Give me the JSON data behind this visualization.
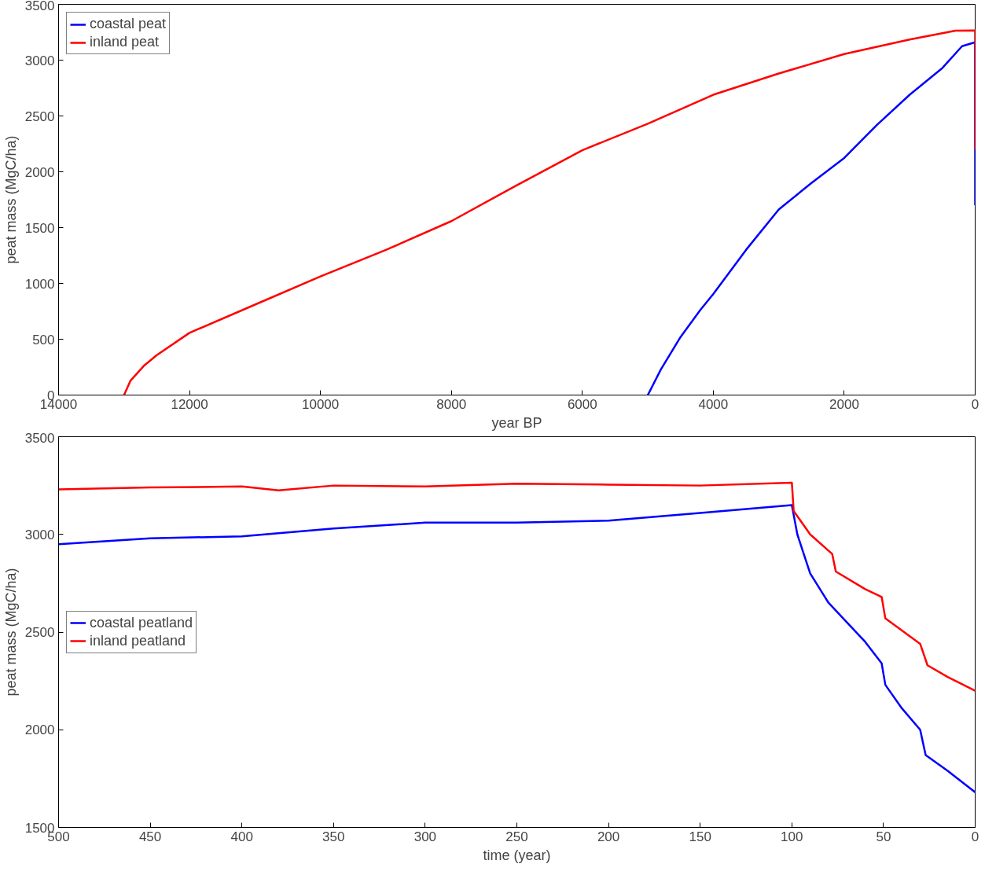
{
  "chart_data": [
    {
      "type": "line",
      "xlabel": "year BP",
      "ylabel": "peat mass (MgC/ha)",
      "xlim": [
        14000,
        0
      ],
      "ylim": [
        0,
        3500
      ],
      "xticks": [
        14000,
        12000,
        10000,
        8000,
        6000,
        4000,
        2000,
        0
      ],
      "yticks": [
        0,
        500,
        1000,
        1500,
        2000,
        2500,
        3000,
        3500
      ],
      "grid": false,
      "legend": "top left",
      "series": [
        {
          "name": "coastal peat",
          "color": "#0000ff",
          "x": [
            5000,
            4800,
            4500,
            4200,
            4000,
            3500,
            3000,
            2500,
            2000,
            1500,
            1000,
            500,
            200,
            0,
            0
          ],
          "values": [
            0,
            230,
            520,
            760,
            905,
            1300,
            1662,
            1900,
            2124,
            2420,
            2690,
            2930,
            3125,
            3160,
            1700
          ]
        },
        {
          "name": "inland peat",
          "color": "#ff0000",
          "x": [
            13000,
            12900,
            12700,
            12500,
            12000,
            11000,
            10000,
            9000,
            8000,
            7000,
            6000,
            5000,
            4000,
            3000,
            2000,
            1000,
            300,
            0,
            0
          ],
          "values": [
            0,
            130,
            260,
            357,
            557,
            810,
            1062,
            1300,
            1558,
            1880,
            2193,
            2430,
            2690,
            2880,
            3055,
            3185,
            3264,
            3265,
            2200
          ]
        }
      ]
    },
    {
      "type": "line",
      "xlabel": "time (year)",
      "ylabel": "peat mass (MgC/ha)",
      "xlim": [
        500,
        0
      ],
      "ylim": [
        1500,
        3500
      ],
      "xticks": [
        500,
        450,
        400,
        350,
        300,
        250,
        200,
        150,
        100,
        50,
        0
      ],
      "yticks": [
        1500,
        2000,
        2500,
        3000,
        3500
      ],
      "grid": false,
      "legend": "left",
      "series": [
        {
          "name": "coastal peatland",
          "color": "#0000ff",
          "x": [
            500,
            450,
            400,
            350,
            300,
            250,
            200,
            150,
            100,
            99,
            97,
            90,
            80,
            75,
            60,
            51,
            49,
            40,
            30,
            27,
            15,
            0
          ],
          "values": [
            2950,
            2980,
            2990,
            3030,
            3060,
            3060,
            3070,
            3110,
            3150,
            3100,
            3000,
            2800,
            2650,
            2600,
            2450,
            2340,
            2230,
            2110,
            2000,
            1870,
            1790,
            1680
          ]
        },
        {
          "name": "inland peatland",
          "color": "#ff0000",
          "x": [
            500,
            450,
            400,
            380,
            350,
            300,
            250,
            200,
            150,
            100,
            99,
            90,
            78,
            76,
            60,
            51,
            49,
            30,
            26,
            15,
            0
          ],
          "values": [
            3230,
            3240,
            3245,
            3225,
            3250,
            3245,
            3260,
            3255,
            3250,
            3265,
            3120,
            3000,
            2900,
            2810,
            2720,
            2680,
            2570,
            2440,
            2330,
            2270,
            2200
          ]
        }
      ]
    }
  ]
}
